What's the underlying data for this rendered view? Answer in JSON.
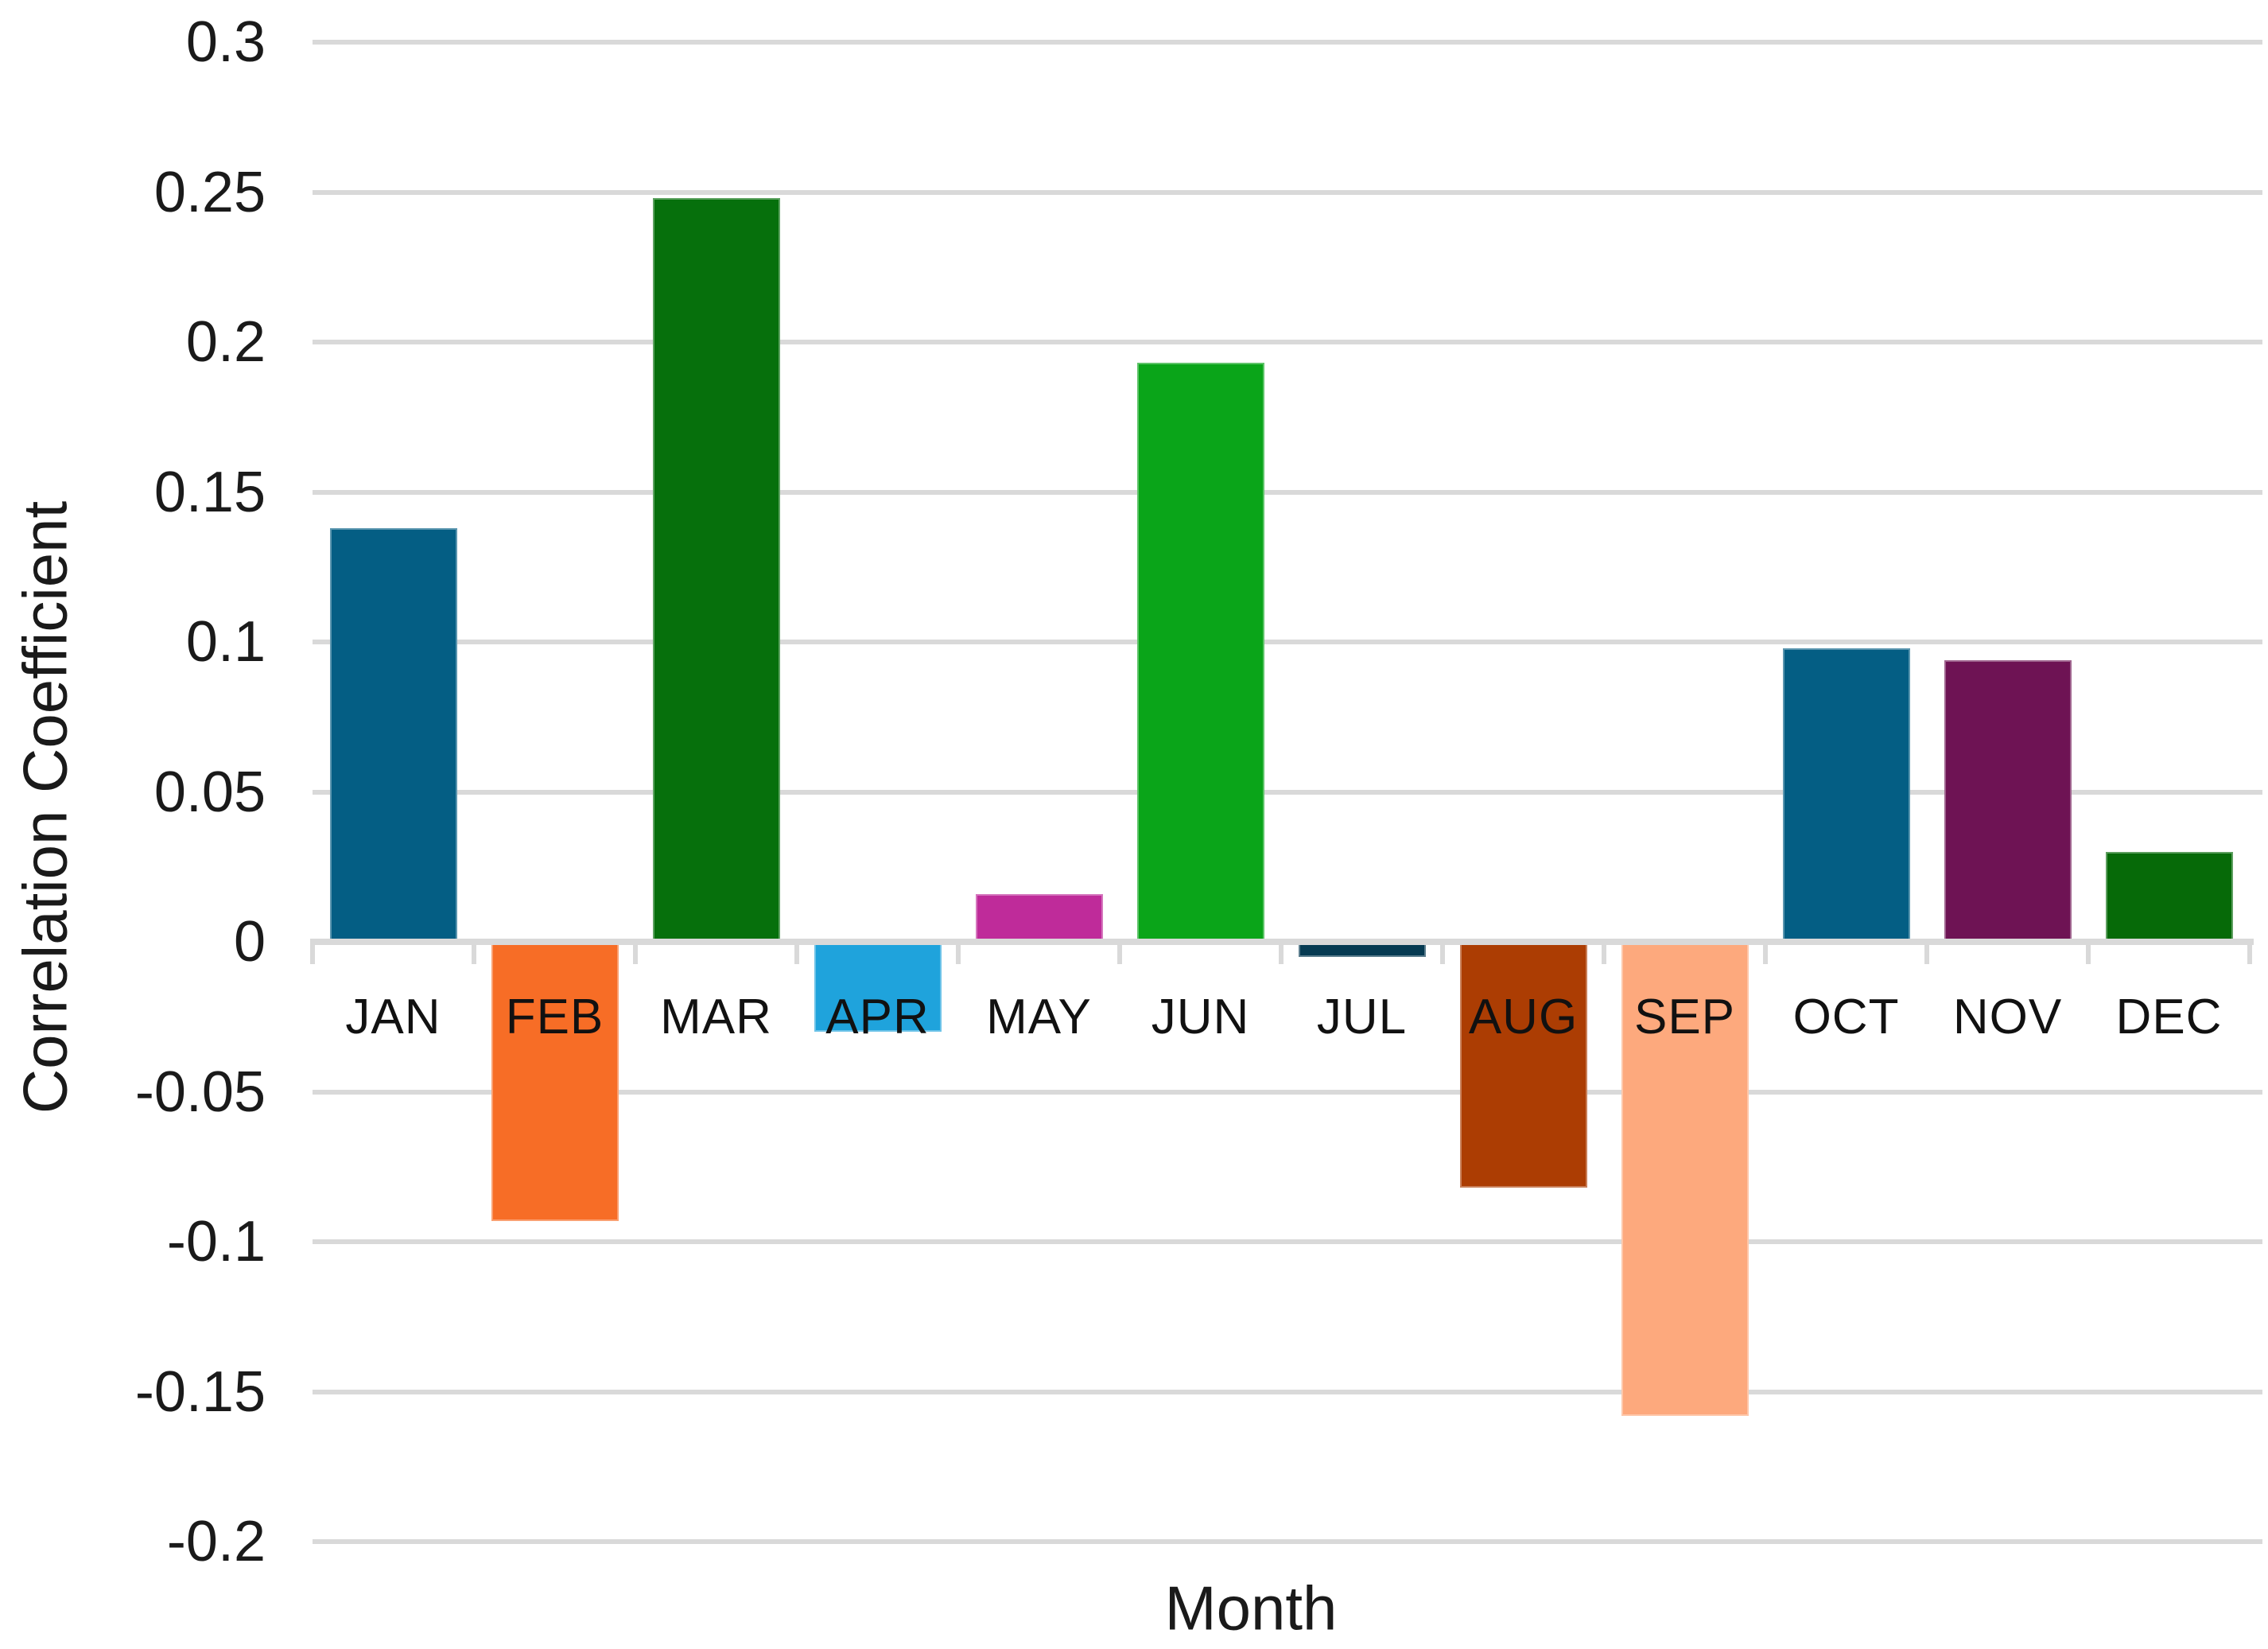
{
  "chart_data": {
    "type": "bar",
    "xlabel": "Month",
    "ylabel": "Correlation Coefficient",
    "categories": [
      "JAN",
      "FEB",
      "MAR",
      "APR",
      "MAY",
      "JUN",
      "JUL",
      "AUG",
      "SEP",
      "OCT",
      "NOV",
      "DEC"
    ],
    "values": [
      0.138,
      -0.093,
      0.248,
      -0.03,
      0.016,
      0.193,
      -0.005,
      -0.082,
      -0.158,
      0.098,
      0.094,
      0.03
    ],
    "bar_colors": [
      "#045e84",
      "#f76d26",
      "#06700c",
      "#1fa3dc",
      "#bf2b9a",
      "#0aa519",
      "#063a52",
      "#ac3d03",
      "#fda97d",
      "#045e84",
      "#6e1354",
      "#066a08"
    ],
    "ylim": [
      -0.2,
      0.3
    ],
    "ytick_step": 0.05,
    "ytick_labels": [
      "0.3",
      "0.25",
      "0.2",
      "0.15",
      "0.1",
      "0.05",
      "0",
      "-0.05",
      "-0.1",
      "-0.15",
      "-0.2"
    ],
    "grid": true,
    "legend": "none",
    "gridline_color": "#d9d9d9",
    "axis_line_color": "#d9d9d9",
    "tick_color": "#d9d9d9",
    "text_color": "#1a1a1a"
  }
}
